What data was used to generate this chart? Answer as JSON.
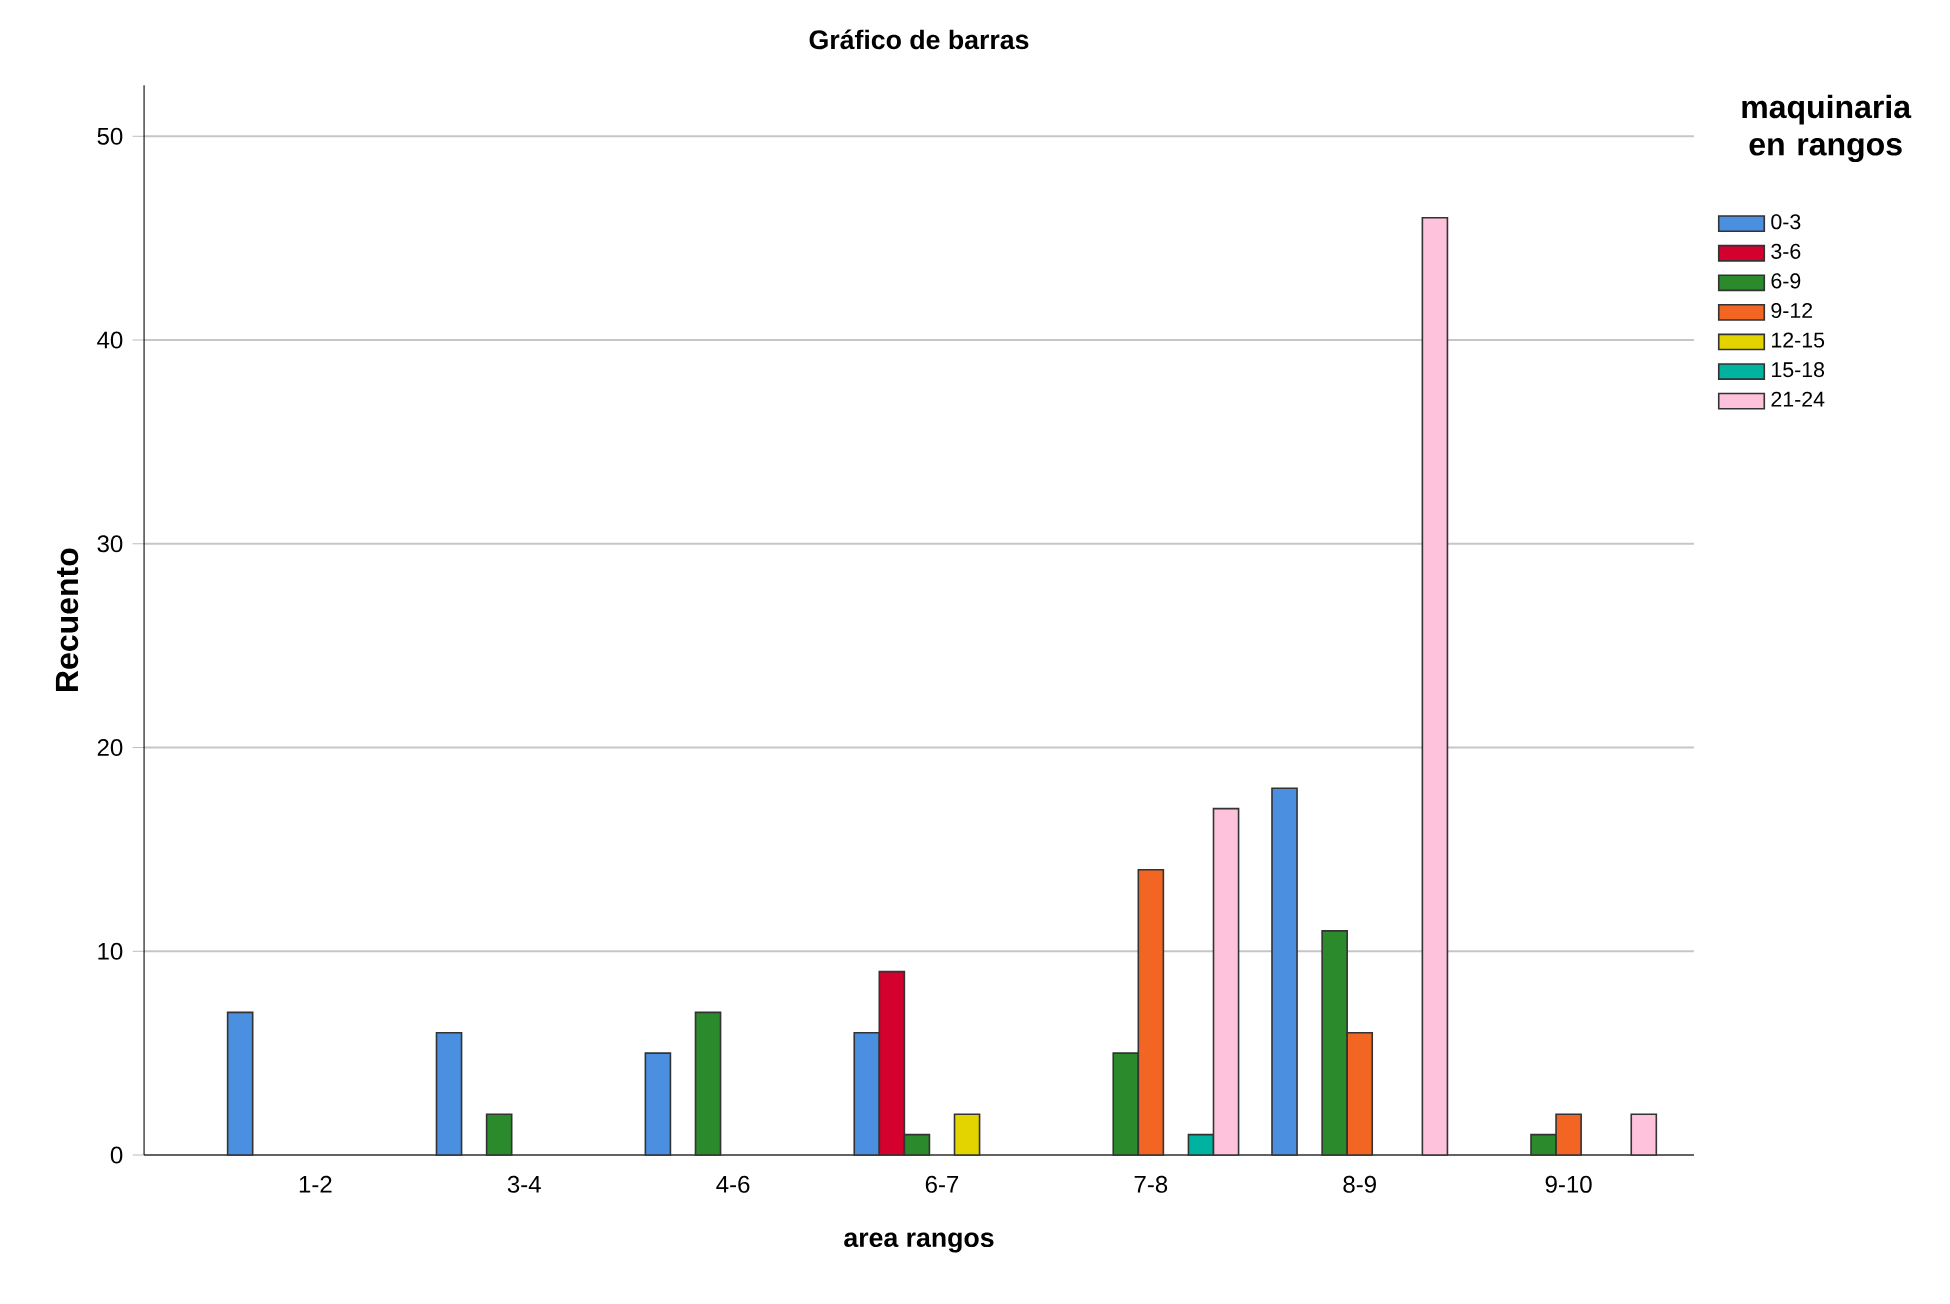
{
  "chart_data": {
    "type": "bar",
    "title": "Gráfico de barras",
    "xlabel": "area rangos",
    "ylabel": "Recuento",
    "legend_title": "maquinaria en rangos",
    "categories": [
      "1-2",
      "3-4",
      "4-6",
      "6-7",
      "7-8",
      "8-9",
      "9-10"
    ],
    "series": [
      {
        "name": "0-3",
        "color": "#4a8fe0",
        "values": [
          7,
          6,
          5,
          6,
          null,
          18,
          null
        ]
      },
      {
        "name": "3-6",
        "color": "#d4002e",
        "values": [
          null,
          null,
          null,
          9,
          null,
          null,
          null
        ]
      },
      {
        "name": "6-9",
        "color": "#2b8a2b",
        "values": [
          null,
          2,
          7,
          1,
          5,
          11,
          1
        ]
      },
      {
        "name": "9-12",
        "color": "#f26522",
        "values": [
          null,
          null,
          null,
          null,
          14,
          6,
          2
        ]
      },
      {
        "name": "12-15",
        "color": "#e3d400",
        "values": [
          null,
          null,
          null,
          2,
          null,
          null,
          null
        ]
      },
      {
        "name": "15-18",
        "color": "#00b3a1",
        "values": [
          null,
          null,
          null,
          null,
          1,
          null,
          null
        ]
      },
      {
        "name": "21-24",
        "color": "#ffc2dc",
        "values": [
          null,
          null,
          null,
          null,
          17,
          46,
          2
        ]
      }
    ],
    "ylim": [
      0,
      52.5
    ],
    "yticks": [
      0,
      10,
      20,
      30,
      40,
      50
    ],
    "grid": "y",
    "legend": "right"
  }
}
